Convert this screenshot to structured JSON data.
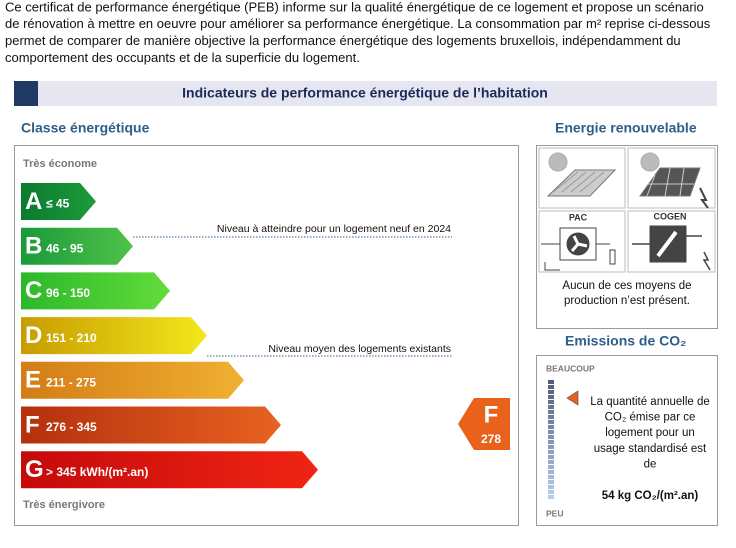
{
  "intro": {
    "lines": [
      "Ce certificat de performance énergétique (PEB) informe sur la qualité énergétique de ce logement et propose un scénario",
      "de rénovation à mettre en oeuvre pour améliorer sa performance énergétique. La consommation par m² reprise ci-dessous",
      "permet de comparer de manière objective la performance énergétique des logements bruxellois, indépendamment du",
      "comportement des occupants et de la superficie du logement."
    ]
  },
  "header": {
    "title": "Indicateurs de performance énergétique de l’habitation"
  },
  "energy_class": {
    "title": "Classe énergétique",
    "top_label": "Très économe",
    "bottom_label": "Très énergivore",
    "classes": [
      {
        "letter": "A",
        "range": "≤ 45"
      },
      {
        "letter": "B",
        "range": "46 - 95"
      },
      {
        "letter": "C",
        "range": "96 - 150"
      },
      {
        "letter": "D",
        "range": "151 - 210"
      },
      {
        "letter": "E",
        "range": "211 - 275"
      },
      {
        "letter": "F",
        "range": "276 - 345"
      },
      {
        "letter": "G",
        "range": "> 345  kWh/(m².an)"
      }
    ],
    "reference_lines": [
      {
        "label": "Niveau à atteindre pour un logement neuf en 2024"
      },
      {
        "label": "Niveau moyen des logements existants"
      }
    ],
    "rating": {
      "letter": "F",
      "value": 278
    }
  },
  "renewable": {
    "title": "Energie renouvelable",
    "icons": [
      "PAC",
      "COGEN"
    ],
    "message": [
      "Aucun de ces moyens de",
      "production n’est présent."
    ]
  },
  "emissions": {
    "title": "Emissions de CO₂",
    "top_label": "BEAUCOUP",
    "bottom_label": "PEU",
    "text": [
      "La quantité annuelle de",
      "CO₂ émise par ce",
      "logement pour un",
      "usage standardisé est",
      "de"
    ],
    "value_text": "54 kg CO₂/(m².an)"
  }
}
